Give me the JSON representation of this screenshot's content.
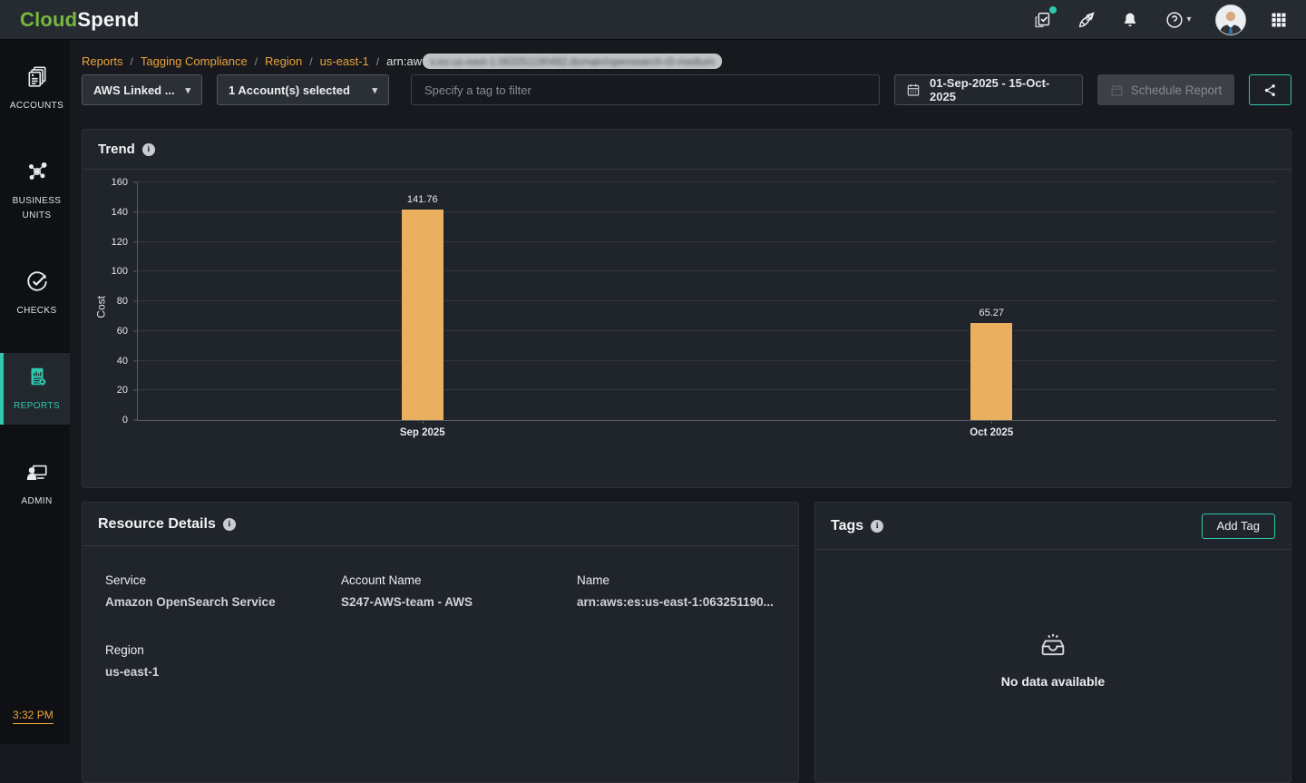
{
  "topbar": {
    "logo_part1": "Cloud",
    "logo_part2": "Spend"
  },
  "sidebar": {
    "items": [
      {
        "label": "ACCOUNTS"
      },
      {
        "label": "BUSINESS UNITS"
      },
      {
        "label": "CHECKS"
      },
      {
        "label": "REPORTS"
      },
      {
        "label": "ADMIN"
      }
    ],
    "time": "3:32 PM"
  },
  "breadcrumb": {
    "items": [
      "Reports",
      "Tagging Compliance",
      "Region",
      "us-east-1"
    ],
    "current_prefix": "arn:aw",
    "current_redacted": "s:es:us-east-1:063251190482:domain/opensearch-t3-medium"
  },
  "filters": {
    "account_type_dropdown": "AWS Linked ...",
    "accounts_dropdown": "1 Account(s) selected",
    "tag_filter_placeholder": "Specify a tag to filter",
    "date_range": "01-Sep-2025 - 15-Oct-2025",
    "schedule_button": "Schedule Report"
  },
  "trend": {
    "title": "Trend"
  },
  "chart_data": {
    "type": "bar",
    "categories": [
      "Sep 2025",
      "Oct 2025"
    ],
    "values": [
      141.76,
      65.27
    ],
    "title": "Trend",
    "xlabel": "",
    "ylabel": "Cost",
    "ylim": [
      0,
      160
    ],
    "ytick_step": 20,
    "grid": true,
    "legend": false,
    "bar_color": "#eab05f"
  },
  "resource_details": {
    "title": "Resource Details",
    "fields": [
      {
        "label": "Service",
        "value": "Amazon OpenSearch Service"
      },
      {
        "label": "Account Name",
        "value": "S247-AWS-team - AWS"
      },
      {
        "label": "Name",
        "value": "arn:aws:es:us-east-1:063251190..."
      },
      {
        "label": "Region",
        "value": "us-east-1"
      }
    ]
  },
  "tags": {
    "title": "Tags",
    "add_button": "Add Tag",
    "empty_text": "No data available"
  },
  "colors": {
    "accent_teal": "#2fc7ad",
    "breadcrumb_link": "#e8a33d",
    "bar": "#eab05f",
    "logo_green": "#76b83e"
  }
}
